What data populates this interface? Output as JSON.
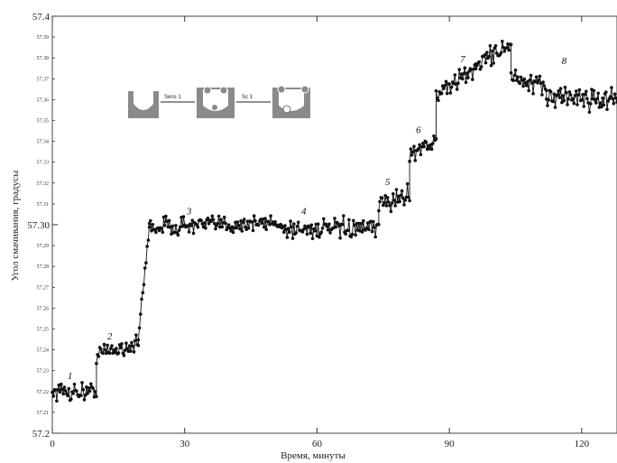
{
  "chart_data": {
    "type": "scatter",
    "title": "",
    "xlabel": "Время, минуты",
    "ylabel": "Угол смачивания, градусы",
    "xlim": [
      0,
      128
    ],
    "ylim": [
      57.2,
      57.4
    ],
    "x_ticks": [
      0,
      30,
      60,
      90,
      120
    ],
    "x_tick_labels": [
      "0",
      "30",
      "60",
      "90",
      "120"
    ],
    "y_tick_labels_major": [
      {
        "value": 57.2,
        "label": "57.2"
      },
      {
        "value": 57.3,
        "label": "57.30"
      },
      {
        "value": 57.4,
        "label": "57.4"
      }
    ],
    "y_tick_labels_minor": [
      {
        "value": 57.21,
        "label": "57.21"
      },
      {
        "value": 57.22,
        "label": "57.22"
      },
      {
        "value": 57.23,
        "label": "57.23"
      },
      {
        "value": 57.24,
        "label": "57.24"
      },
      {
        "value": 57.25,
        "label": "57.25"
      },
      {
        "value": 57.26,
        "label": "57.26"
      },
      {
        "value": 57.27,
        "label": "57.27"
      },
      {
        "value": 57.28,
        "label": "57.28"
      },
      {
        "value": 57.29,
        "label": "57.29"
      },
      {
        "value": 57.31,
        "label": "57.31"
      },
      {
        "value": 57.32,
        "label": "57.32"
      },
      {
        "value": 57.33,
        "label": "57.33"
      },
      {
        "value": 57.34,
        "label": "57.34"
      },
      {
        "value": 57.35,
        "label": "57.35"
      },
      {
        "value": 57.36,
        "label": "57.36"
      },
      {
        "value": 57.37,
        "label": "57.37"
      },
      {
        "value": 57.38,
        "label": "57.38"
      },
      {
        "value": 57.39,
        "label": "57.39"
      }
    ],
    "segments": [
      {
        "x0": 0,
        "x1": 10,
        "y0": 57.22,
        "y1": 57.22,
        "noise": 0.0022
      },
      {
        "x0": 10,
        "x1": 19.5,
        "y0": 57.238,
        "y1": 57.243,
        "noise": 0.0022
      },
      {
        "x0": 19.5,
        "x1": 22,
        "y0": 57.245,
        "y1": 57.3,
        "noise": 0.0015
      },
      {
        "x0": 22,
        "x1": 52,
        "y0": 57.299,
        "y1": 57.301,
        "noise": 0.0022
      },
      {
        "x0": 52,
        "x1": 74,
        "y0": 57.298,
        "y1": 57.298,
        "noise": 0.0022
      },
      {
        "x0": 74,
        "x1": 81,
        "y0": 57.31,
        "y1": 57.314,
        "noise": 0.0022
      },
      {
        "x0": 81,
        "x1": 87,
        "y0": 57.335,
        "y1": 57.34,
        "noise": 0.0022
      },
      {
        "x0": 87,
        "x1": 96,
        "y0": 57.362,
        "y1": 57.375,
        "noise": 0.0022
      },
      {
        "x0": 96,
        "x1": 104,
        "y0": 57.377,
        "y1": 57.387,
        "noise": 0.0022
      },
      {
        "x0": 104,
        "x1": 112,
        "y0": 57.37,
        "y1": 57.365,
        "noise": 0.0025
      },
      {
        "x0": 112,
        "x1": 128,
        "y0": 57.362,
        "y1": 57.36,
        "noise": 0.0028
      }
    ],
    "stage_labels": [
      {
        "text": "1",
        "x": 4,
        "y": 57.226
      },
      {
        "text": "2",
        "x": 13,
        "y": 57.245
      },
      {
        "text": "3",
        "x": 31,
        "y": 57.305
      },
      {
        "text": "4",
        "x": 57,
        "y": 57.305
      },
      {
        "text": "5",
        "x": 76,
        "y": 57.319
      },
      {
        "text": "6",
        "x": 83,
        "y": 57.344
      },
      {
        "text": "7",
        "x": 93,
        "y": 57.378
      },
      {
        "text": "8",
        "x": 116,
        "y": 57.377
      }
    ],
    "inset": {
      "arrow_label_1": "Sens 1",
      "arrow_label_2": "Sc 1"
    },
    "colors": {
      "axis": "#333333",
      "marker": "#111111",
      "inset_fill": "#8a8a8a"
    }
  }
}
